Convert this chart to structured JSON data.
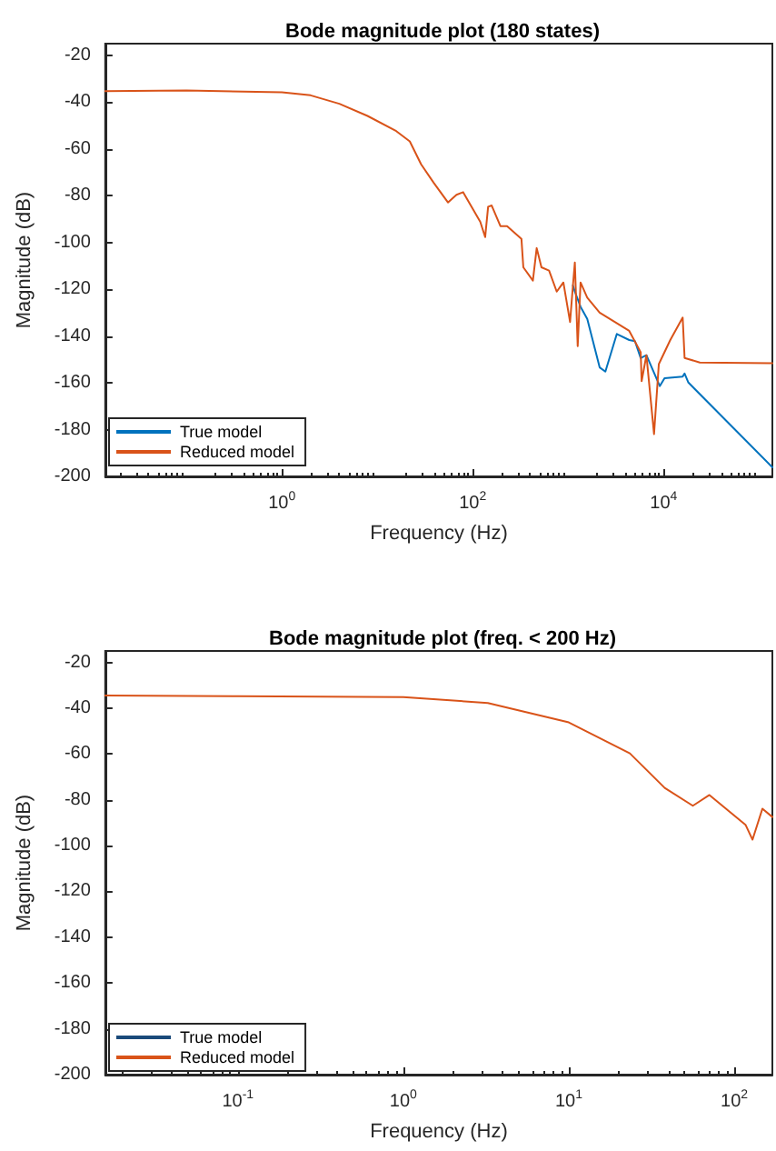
{
  "chart_data": [
    {
      "type": "line",
      "title": "Bode magnitude plot (180 states)",
      "xlabel": "Frequency (Hz)",
      "ylabel": "Magnitude (dB)",
      "log": "x",
      "xlim": [
        0.0141,
        138000
      ],
      "xticks": [
        {
          "value": 1,
          "label": "10$^{0}$"
        },
        {
          "value": 100,
          "label": "10$^{2}$"
        },
        {
          "value": 10000,
          "label": "10$^{4}$"
        }
      ],
      "ylim": [
        -200,
        -15
      ],
      "yticks": [
        -200,
        -180,
        -160,
        -140,
        -120,
        -100,
        -80,
        -60,
        -40,
        -20
      ],
      "grid": false,
      "legend": "bottom left",
      "marker": "none",
      "line_style": "solid",
      "series": [
        {
          "name": "True model",
          "color": "#0072bd",
          "x": [
            1122,
            1175,
            1349,
            1585,
            2138,
            2455,
            3236,
            4365,
            5012,
            5754,
            6607,
            9120,
            10230,
            15850,
            16600,
            18200,
            138000
          ],
          "values": [
            -118.4,
            -121,
            -127.5,
            -132.7,
            -153.4,
            -155.2,
            -139.1,
            -141.7,
            -142.2,
            -149.4,
            -148.2,
            -161.4,
            -158,
            -157.3,
            -156,
            -159.9,
            -196.1
          ]
        },
        {
          "name": "Reduced model",
          "color": "#d95319",
          "x": [
            0.0141,
            0.1,
            1,
            2,
            4,
            7.9,
            15.8,
            21.9,
            28.8,
            38.9,
            55,
            67.6,
            79.4,
            120,
            135,
            145,
            158,
            195,
            229,
            324,
            339,
            427,
            468,
            525,
            631,
            759,
            891,
            1047,
            1122,
            1175,
            1259,
            1349,
            1585,
            2138,
            4365,
            5754,
            5888,
            6607,
            7943,
            8913,
            11750,
            15850,
            16600,
            23990,
            138000
          ],
          "values": [
            -35.3,
            -35,
            -35.8,
            -37.1,
            -40.7,
            -45.9,
            -52.4,
            -56.8,
            -66.6,
            -74.4,
            -82.9,
            -79.6,
            -78.5,
            -91.2,
            -97.7,
            -84.7,
            -84.2,
            -93,
            -93,
            -98.5,
            -110.6,
            -116.3,
            -102.4,
            -110.6,
            -112,
            -121,
            -117.1,
            -134,
            -118.4,
            -108.6,
            -144.3,
            -117.1,
            -123.6,
            -130,
            -137.8,
            -146.9,
            -159.3,
            -148.2,
            -181.9,
            -152,
            -141.7,
            -132.1,
            -149.4,
            -151.3,
            -151.6
          ]
        }
      ]
    },
    {
      "type": "line",
      "title": "Bode magnitude plot (freq. < 200 Hz)",
      "xlabel": "Frequency (Hz)",
      "ylabel": "Magnitude (dB)",
      "log": "x",
      "xlim": [
        0.0158,
        170
      ],
      "xticks": [
        {
          "value": 0.1,
          "label": "10$^{-1}$"
        },
        {
          "value": 1,
          "label": "10$^{0}$"
        },
        {
          "value": 10,
          "label": "10$^{1}$"
        },
        {
          "value": 100,
          "label": "10$^{2}$"
        }
      ],
      "ylim": [
        -200,
        -15
      ],
      "yticks": [
        -200,
        -180,
        -160,
        -140,
        -120,
        -100,
        -80,
        -60,
        -40,
        -20
      ],
      "grid": false,
      "legend": "bottom left",
      "marker": "none",
      "line_style": "solid",
      "series": [
        {
          "name": "True model",
          "color": "#1a4a7a"
        },
        {
          "name": "Reduced model",
          "color": "#d95319",
          "x": [
            0.0158,
            0.1,
            1,
            3.24,
            10,
            23.4,
            38,
            56.2,
            70.8,
            117,
            129,
            148,
            170
          ],
          "values": [
            -34.5,
            -34.8,
            -35.1,
            -37.7,
            -46.2,
            -59.7,
            -74.8,
            -82.6,
            -77.9,
            -90.9,
            -97.4,
            -83.9,
            -87.5
          ]
        }
      ]
    }
  ]
}
